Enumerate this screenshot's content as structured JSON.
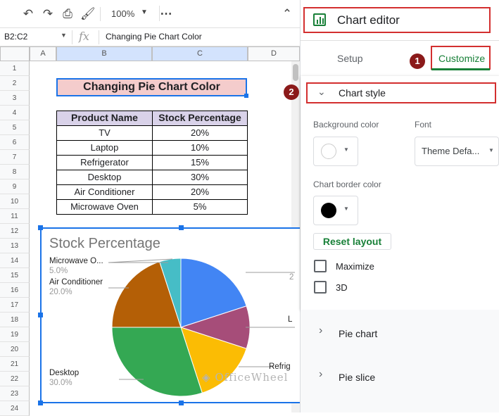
{
  "toolbar": {
    "zoom": "100%"
  },
  "formula": {
    "name_box": "B2:C2",
    "fx": "fx",
    "content": "Changing Pie Chart Color"
  },
  "columns": [
    "A",
    "B",
    "C",
    "D"
  ],
  "rows": [
    "1",
    "2",
    "3",
    "4",
    "5",
    "6",
    "7",
    "8",
    "9",
    "10",
    "11",
    "12",
    "13",
    "14",
    "15",
    "16",
    "17",
    "18",
    "19",
    "20",
    "21",
    "22",
    "23",
    "24"
  ],
  "sheet": {
    "title": "Changing Pie Chart Color",
    "headers": [
      "Product Name",
      "Stock Percentage"
    ],
    "data": [
      [
        "TV",
        "20%"
      ],
      [
        "Laptop",
        "10%"
      ],
      [
        "Refrigerator",
        "15%"
      ],
      [
        "Desktop",
        "30%"
      ],
      [
        "Air Conditioner",
        "20%"
      ],
      [
        "Microwave Oven",
        "5%"
      ]
    ]
  },
  "chart_data": {
    "type": "pie",
    "title": "Stock Percentage",
    "categories": [
      "TV",
      "Laptop",
      "Refrigerator",
      "Desktop",
      "Air Conditioner",
      "Microwave Oven"
    ],
    "values": [
      20,
      10,
      15,
      30,
      20,
      5
    ],
    "colors": [
      "#4285f4",
      "#a64d79",
      "#fbbc04",
      "#34a853",
      "#b45f06",
      "#46bdc6"
    ],
    "labels": [
      {
        "name": "Microwave O...",
        "pct": "5.0%"
      },
      {
        "name": "Air Conditioner",
        "pct": "20.0%"
      },
      {
        "name": "Desktop",
        "pct": "30.0%"
      },
      {
        "name": "Refrig",
        "pct": ""
      },
      {
        "name": "L",
        "pct": ""
      },
      {
        "name": "",
        "pct": "2"
      }
    ]
  },
  "watermark": "OfficeWheel",
  "editor": {
    "title": "Chart editor",
    "tab_setup": "Setup",
    "tab_customize": "Customize",
    "badge1": "1",
    "badge2": "2",
    "section_style": "Chart style",
    "bg_color_label": "Background color",
    "font_label": "Font",
    "font_value": "Theme Defa...",
    "border_color_label": "Chart border color",
    "reset_layout": "Reset layout",
    "maximize": "Maximize",
    "three_d": "3D",
    "section_pie": "Pie chart",
    "section_slice": "Pie slice",
    "accent": "#188038",
    "border_color": "#000000"
  }
}
